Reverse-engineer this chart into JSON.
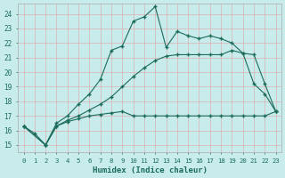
{
  "title": "",
  "xlabel": "Humidex (Indice chaleur)",
  "bg_color": "#c8ecec",
  "grid_color": "#ddb0b0",
  "line_color": "#1a6b5a",
  "xlim": [
    -0.5,
    23.5
  ],
  "ylim": [
    14.5,
    24.7
  ],
  "xticks": [
    0,
    1,
    2,
    3,
    4,
    5,
    6,
    7,
    8,
    9,
    10,
    11,
    12,
    13,
    14,
    15,
    16,
    17,
    18,
    19,
    20,
    21,
    22,
    23
  ],
  "yticks": [
    15,
    16,
    17,
    18,
    19,
    20,
    21,
    22,
    23,
    24
  ],
  "line1_x": [
    0,
    1,
    2,
    3,
    4,
    5,
    6,
    7,
    8,
    9,
    10,
    11,
    12,
    13,
    14,
    15,
    16,
    17,
    18,
    19,
    20,
    21,
    22,
    23
  ],
  "line1_y": [
    16.3,
    15.8,
    15.0,
    16.5,
    17.0,
    17.8,
    18.5,
    19.5,
    21.5,
    21.8,
    23.5,
    23.8,
    24.5,
    21.7,
    22.8,
    22.5,
    22.3,
    22.5,
    22.3,
    22.0,
    21.3,
    21.2,
    19.2,
    17.3
  ],
  "line2_x": [
    0,
    2,
    3,
    4,
    5,
    6,
    7,
    8,
    9,
    10,
    11,
    12,
    13,
    14,
    15,
    16,
    17,
    18,
    19,
    20,
    21,
    22,
    23
  ],
  "line2_y": [
    16.3,
    15.0,
    16.3,
    16.6,
    16.8,
    17.0,
    17.1,
    17.2,
    17.3,
    17.0,
    17.0,
    17.0,
    17.0,
    17.0,
    17.0,
    17.0,
    17.0,
    17.0,
    17.0,
    17.0,
    17.0,
    17.0,
    17.3
  ],
  "line3_x": [
    0,
    2,
    3,
    4,
    5,
    6,
    7,
    8,
    9,
    10,
    11,
    12,
    13,
    14,
    15,
    16,
    17,
    18,
    19,
    20,
    21,
    22,
    23
  ],
  "line3_y": [
    16.3,
    15.0,
    16.3,
    16.7,
    17.0,
    17.4,
    17.8,
    18.3,
    19.0,
    19.7,
    20.3,
    20.8,
    21.1,
    21.2,
    21.2,
    21.2,
    21.2,
    21.2,
    21.5,
    21.3,
    19.2,
    18.5,
    17.3
  ]
}
